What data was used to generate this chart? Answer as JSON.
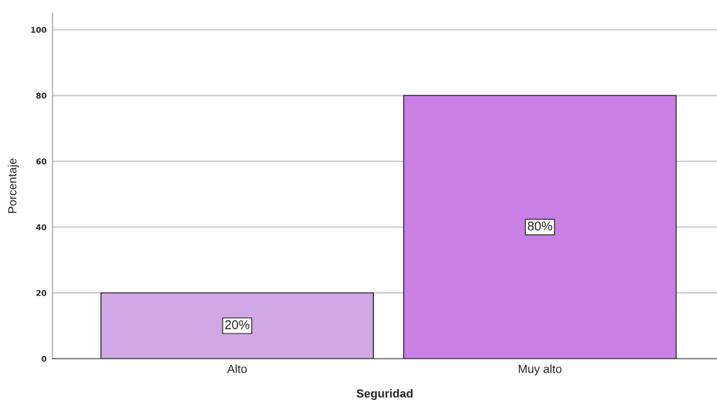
{
  "chart_data": {
    "type": "bar",
    "xlabel": "Seguridad",
    "ylabel": "Porcentaje",
    "categories": [
      "Alto",
      "Muy alto"
    ],
    "values": [
      20,
      80
    ],
    "colors": [
      "#d0a9e4",
      "#c97fe6"
    ],
    "value_labels": [
      "20%",
      "80%"
    ],
    "ylim": [
      0,
      105
    ],
    "yticks": [
      0,
      20,
      40,
      60,
      80,
      100
    ],
    "grid": "y",
    "legend": false
  }
}
